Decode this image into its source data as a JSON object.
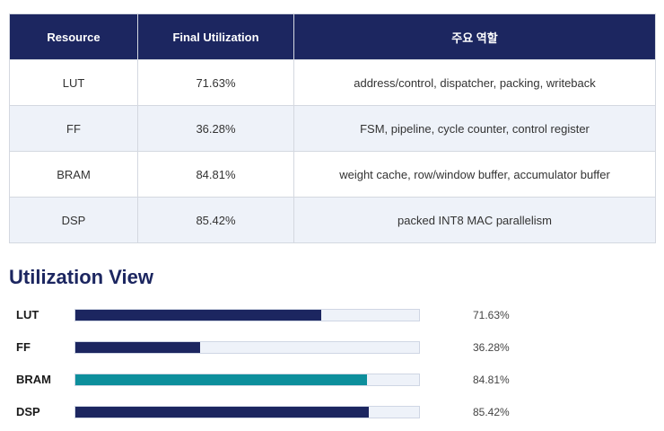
{
  "table": {
    "headers": [
      "Resource",
      "Final Utilization",
      "주요 역할"
    ],
    "rows": [
      {
        "resource": "LUT",
        "utilization": "71.63%",
        "role": "address/control, dispatcher, packing, writeback"
      },
      {
        "resource": "FF",
        "utilization": "36.28%",
        "role": "FSM, pipeline, cycle counter, control register"
      },
      {
        "resource": "BRAM",
        "utilization": "84.81%",
        "role": "weight cache, row/window buffer, accumulator buffer"
      },
      {
        "resource": "DSP",
        "utilization": "85.42%",
        "role": "packed INT8 MAC parallelism"
      }
    ]
  },
  "view": {
    "title": "Utilization View",
    "bars": [
      {
        "label": "LUT",
        "value_text": "71.63%",
        "value": 71.63,
        "color": "#1c2660"
      },
      {
        "label": "FF",
        "value_text": "36.28%",
        "value": 36.28,
        "color": "#1c2660"
      },
      {
        "label": "BRAM",
        "value_text": "84.81%",
        "value": 84.81,
        "color": "#0d8f9c"
      },
      {
        "label": "DSP",
        "value_text": "85.42%",
        "value": 85.42,
        "color": "#1c2660"
      }
    ]
  },
  "colors": {
    "header_bg": "#1c2660",
    "accent_teal": "#0d8f9c",
    "row_alt_bg": "#eef2f9"
  }
}
